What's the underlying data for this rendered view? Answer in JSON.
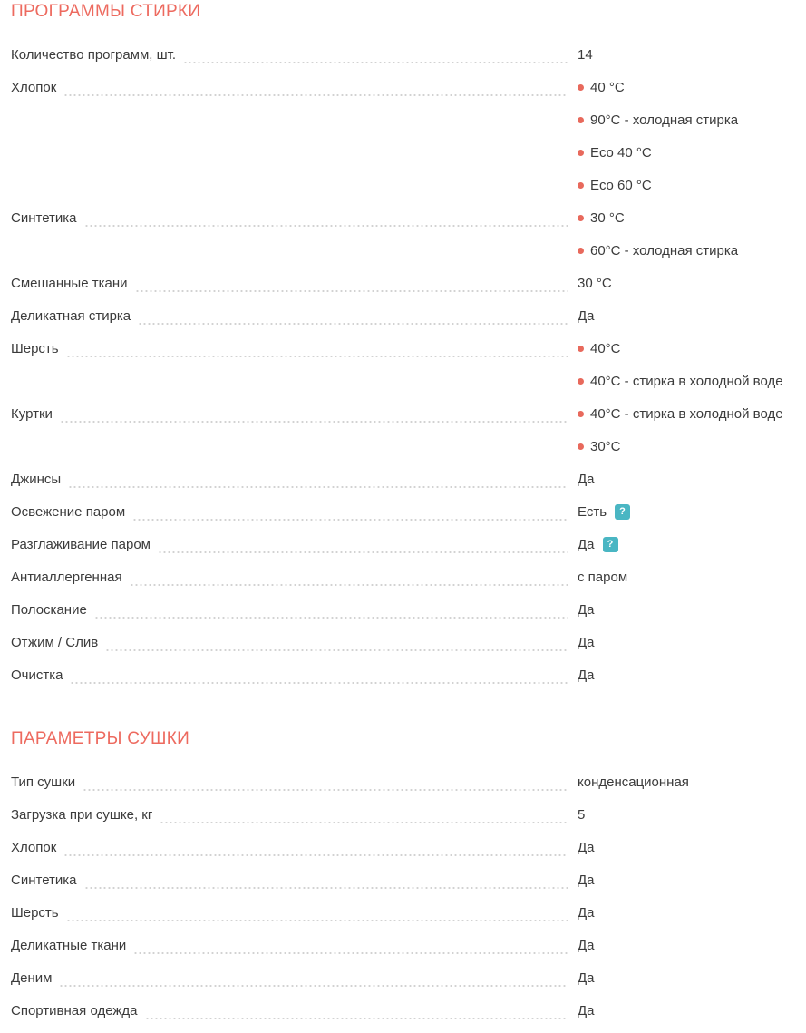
{
  "theme": {
    "accent_color": "#ed6a5f",
    "bullet_color": "#e8695c",
    "help_icon_color": "#4ab6c3",
    "text_color": "#3b3b3b",
    "leader_dot_color": "#d2d2d2"
  },
  "help_glyph": "?",
  "sections": [
    {
      "title": "ПРОГРАММЫ СТИРКИ",
      "rows": [
        {
          "label": "Количество программ, шт.",
          "values": [
            {
              "text": "14",
              "bullet": false,
              "help": false
            }
          ]
        },
        {
          "label": "Хлопок",
          "values": [
            {
              "text": "40 °C",
              "bullet": true,
              "help": false
            },
            {
              "text": "90°C - холодная стирка",
              "bullet": true,
              "help": false
            },
            {
              "text": "Eco 40 °C",
              "bullet": true,
              "help": false
            },
            {
              "text": "Eco 60 °C",
              "bullet": true,
              "help": false
            }
          ]
        },
        {
          "label": "Синтетика",
          "values": [
            {
              "text": "30 °C",
              "bullet": true,
              "help": false
            },
            {
              "text": "60°C - холодная стирка",
              "bullet": true,
              "help": false
            }
          ]
        },
        {
          "label": "Смешанные ткани",
          "values": [
            {
              "text": "30 °C",
              "bullet": false,
              "help": false
            }
          ]
        },
        {
          "label": "Деликатная стирка",
          "values": [
            {
              "text": "Да",
              "bullet": false,
              "help": false
            }
          ]
        },
        {
          "label": "Шерсть",
          "values": [
            {
              "text": "40°C",
              "bullet": true,
              "help": false
            },
            {
              "text": "40°C - стирка в холодной воде",
              "bullet": true,
              "help": false
            }
          ]
        },
        {
          "label": "Куртки",
          "values": [
            {
              "text": "40°C - стирка в холодной воде",
              "bullet": true,
              "help": false
            },
            {
              "text": "30°C",
              "bullet": true,
              "help": false
            }
          ]
        },
        {
          "label": "Джинсы",
          "values": [
            {
              "text": "Да",
              "bullet": false,
              "help": false
            }
          ]
        },
        {
          "label": "Освежение паром",
          "values": [
            {
              "text": "Есть",
              "bullet": false,
              "help": true
            }
          ]
        },
        {
          "label": "Разглаживание паром",
          "values": [
            {
              "text": "Да",
              "bullet": false,
              "help": true
            }
          ]
        },
        {
          "label": "Антиаллергенная",
          "values": [
            {
              "text": "с паром",
              "bullet": false,
              "help": false
            }
          ]
        },
        {
          "label": "Полоскание",
          "values": [
            {
              "text": "Да",
              "bullet": false,
              "help": false
            }
          ]
        },
        {
          "label": "Отжим / Слив",
          "values": [
            {
              "text": "Да",
              "bullet": false,
              "help": false
            }
          ]
        },
        {
          "label": "Очистка",
          "values": [
            {
              "text": "Да",
              "bullet": false,
              "help": false
            }
          ]
        }
      ]
    },
    {
      "title": "ПАРАМЕТРЫ СУШКИ",
      "rows": [
        {
          "label": "Тип сушки",
          "values": [
            {
              "text": "конденсационная",
              "bullet": false,
              "help": false
            }
          ]
        },
        {
          "label": "Загрузка при сушке, кг",
          "values": [
            {
              "text": "5",
              "bullet": false,
              "help": false
            }
          ]
        },
        {
          "label": "Хлопок",
          "values": [
            {
              "text": "Да",
              "bullet": false,
              "help": false
            }
          ]
        },
        {
          "label": "Синтетика",
          "values": [
            {
              "text": "Да",
              "bullet": false,
              "help": false
            }
          ]
        },
        {
          "label": "Шерсть",
          "values": [
            {
              "text": "Да",
              "bullet": false,
              "help": false
            }
          ]
        },
        {
          "label": "Деликатные ткани",
          "values": [
            {
              "text": "Да",
              "bullet": false,
              "help": false
            }
          ]
        },
        {
          "label": "Деним",
          "values": [
            {
              "text": "Да",
              "bullet": false,
              "help": false
            }
          ]
        },
        {
          "label": "Спортивная одежда",
          "values": [
            {
              "text": "Да",
              "bullet": false,
              "help": false
            }
          ]
        }
      ]
    }
  ]
}
